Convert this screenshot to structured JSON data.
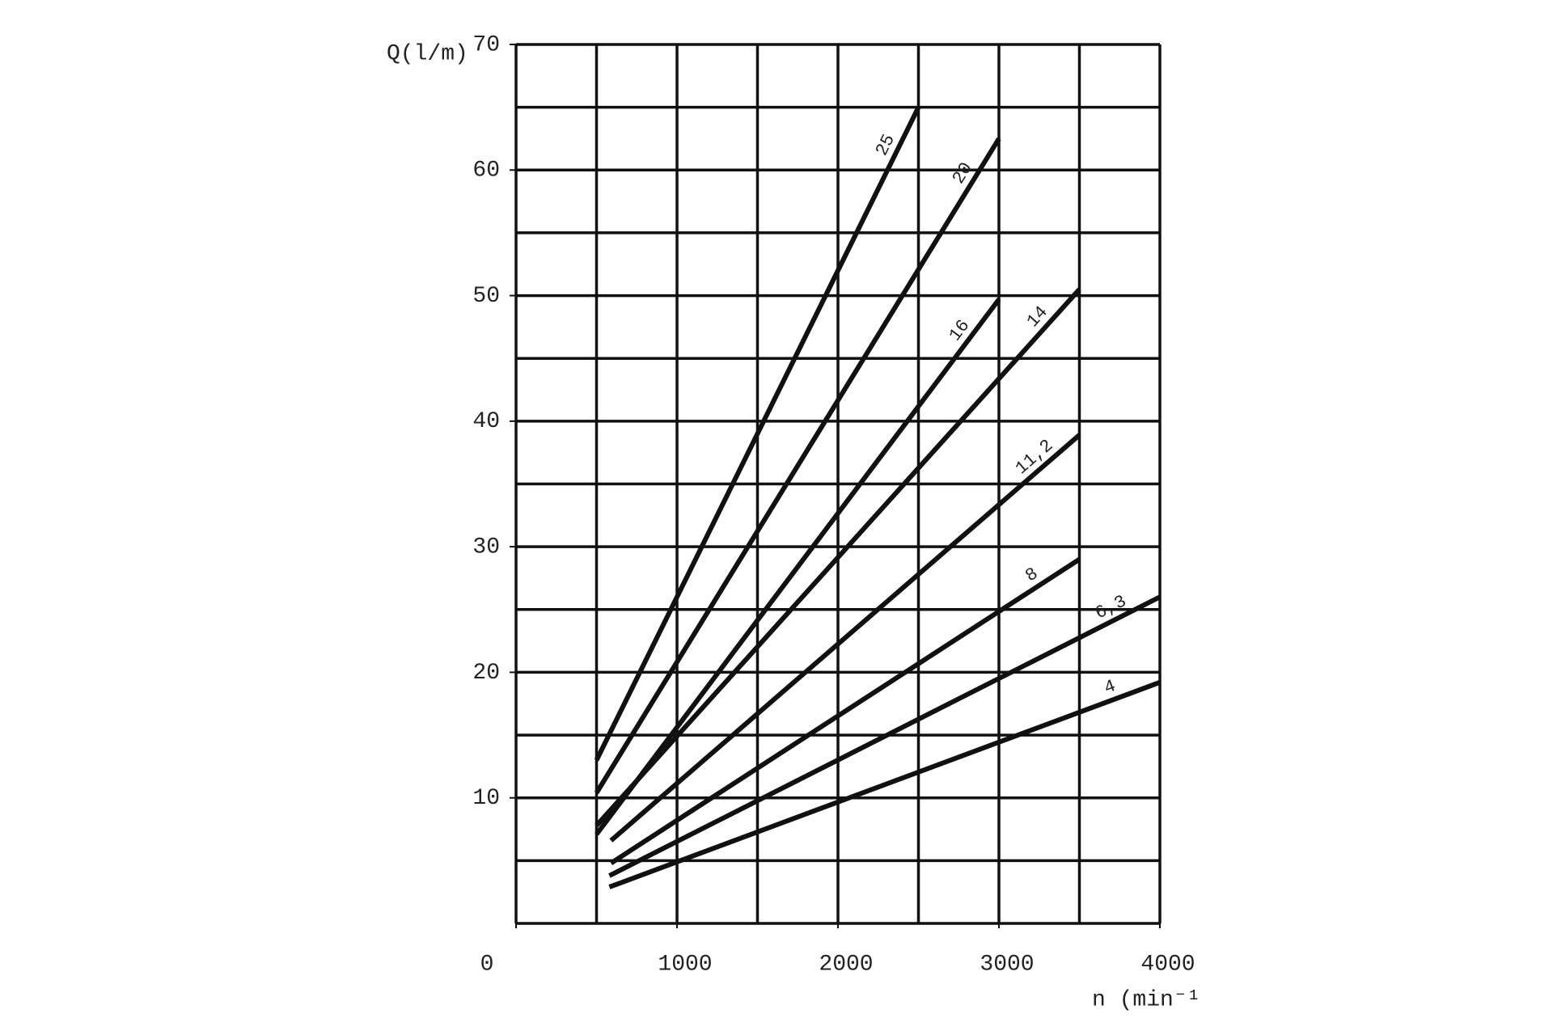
{
  "chart_data": {
    "type": "line",
    "ylabel": "Q(l/m)",
    "xlabel": "n (min⁻¹)",
    "xlim": [
      0,
      4000
    ],
    "ylim": [
      0,
      70
    ],
    "xticks": [
      0,
      1000,
      2000,
      3000,
      4000
    ],
    "yticks": [
      10,
      20,
      30,
      40,
      50,
      60,
      70
    ],
    "xgrid": [
      0,
      500,
      1000,
      1500,
      2000,
      2500,
      3000,
      3500,
      4000
    ],
    "ygrid": [
      0,
      5,
      10,
      15,
      20,
      25,
      30,
      35,
      40,
      45,
      50,
      55,
      60,
      65,
      70
    ],
    "grid": true,
    "series": [
      {
        "name": "25",
        "color": "#111111",
        "x": [
          500,
          2500
        ],
        "values": [
          13,
          65
        ]
      },
      {
        "name": "20",
        "color": "#111111",
        "x": [
          500,
          3000
        ],
        "values": [
          10.4,
          62.5
        ]
      },
      {
        "name": "16",
        "color": "#111111",
        "x": [
          500,
          3000
        ],
        "values": [
          7.1,
          49.7
        ]
      },
      {
        "name": "14",
        "color": "#111111",
        "x": [
          500,
          3500
        ],
        "values": [
          7.8,
          50.5
        ]
      },
      {
        "name": "11,2",
        "color": "#111111",
        "x": [
          590,
          3500
        ],
        "values": [
          6.6,
          38.9
        ]
      },
      {
        "name": "8",
        "color": "#111111",
        "x": [
          590,
          3500
        ],
        "values": [
          4.8,
          29
        ]
      },
      {
        "name": "6,3",
        "color": "#111111",
        "x": [
          580,
          4000
        ],
        "values": [
          3.8,
          26
        ]
      },
      {
        "name": "4",
        "color": "#111111",
        "x": [
          580,
          4000
        ],
        "values": [
          2.9,
          19.2
        ]
      }
    ]
  }
}
